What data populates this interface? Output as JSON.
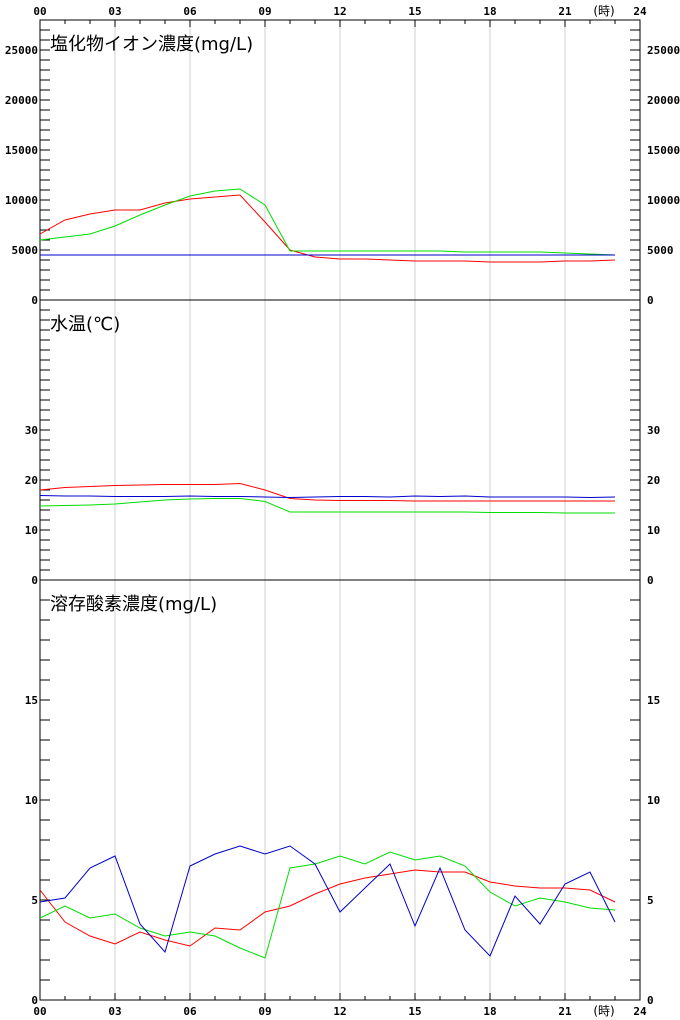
{
  "hours_unit_label": "(時)",
  "x_tick_labels": [
    "00",
    "03",
    "06",
    "09",
    "12",
    "15",
    "18",
    "21",
    "24"
  ],
  "series_colors": {
    "red": "#ff0000",
    "green": "#00dd00",
    "blue": "#0000cc"
  },
  "chart_data": [
    {
      "type": "line",
      "title": "塩化物イオン濃度(mg/L)",
      "xlabel": "(時)",
      "ylabel": "",
      "xlim": [
        0,
        24
      ],
      "ylim": [
        0,
        28000
      ],
      "grid": "vertical",
      "y_tick_labels": [
        "0",
        "5000",
        "10000",
        "15000",
        "20000",
        "25000"
      ],
      "x": [
        0,
        1,
        2,
        3,
        4,
        5,
        6,
        7,
        8,
        9,
        10,
        11,
        12,
        13,
        14,
        15,
        16,
        17,
        18,
        19,
        20,
        21,
        22,
        23
      ],
      "series": [
        {
          "color": "red",
          "values": [
            6600,
            8000,
            8600,
            9000,
            9000,
            9700,
            10100,
            10300,
            10500,
            7800,
            5000,
            4300,
            4100,
            4100,
            4000,
            3900,
            3900,
            3900,
            3800,
            3800,
            3800,
            3900,
            3900,
            4000
          ]
        },
        {
          "color": "green",
          "values": [
            6000,
            6300,
            6600,
            7400,
            8500,
            9500,
            10400,
            10900,
            11100,
            9500,
            4900,
            4900,
            4900,
            4900,
            4900,
            4900,
            4900,
            4800,
            4800,
            4800,
            4800,
            4700,
            4600,
            4500
          ]
        },
        {
          "color": "blue",
          "values": [
            4500,
            4500,
            4500,
            4500,
            4500,
            4500,
            4500,
            4500,
            4500,
            4500,
            4500,
            4500,
            4500,
            4500,
            4500,
            4500,
            4500,
            4500,
            4500,
            4500,
            4500,
            4500,
            4500,
            4500
          ]
        }
      ]
    },
    {
      "type": "line",
      "title": "水温(℃)",
      "xlabel": "(時)",
      "ylabel": "",
      "xlim": [
        0,
        24
      ],
      "ylim": [
        0,
        56
      ],
      "grid": "vertical",
      "y_tick_labels": [
        "0",
        "10",
        "20",
        "30"
      ],
      "x": [
        0,
        1,
        2,
        3,
        4,
        5,
        6,
        7,
        8,
        9,
        10,
        11,
        12,
        13,
        14,
        15,
        16,
        17,
        18,
        19,
        20,
        21,
        22,
        23
      ],
      "series": [
        {
          "color": "red",
          "values": [
            18.0,
            18.5,
            18.7,
            18.9,
            19.0,
            19.1,
            19.1,
            19.1,
            19.3,
            18.0,
            16.3,
            16.0,
            15.9,
            15.9,
            15.9,
            15.8,
            15.8,
            15.8,
            15.8,
            15.8,
            15.8,
            15.8,
            15.8,
            15.8
          ]
        },
        {
          "color": "green",
          "values": [
            14.8,
            14.9,
            15.0,
            15.2,
            15.6,
            16.0,
            16.2,
            16.3,
            16.3,
            15.7,
            13.6,
            13.6,
            13.6,
            13.6,
            13.6,
            13.6,
            13.6,
            13.6,
            13.5,
            13.5,
            13.5,
            13.4,
            13.4,
            13.4
          ]
        },
        {
          "color": "blue",
          "values": [
            16.9,
            16.8,
            16.8,
            16.7,
            16.7,
            16.7,
            16.8,
            16.7,
            16.7,
            16.6,
            16.5,
            16.6,
            16.7,
            16.7,
            16.6,
            16.8,
            16.7,
            16.8,
            16.6,
            16.6,
            16.6,
            16.6,
            16.5,
            16.6
          ]
        }
      ]
    },
    {
      "type": "line",
      "title": "溶存酸素濃度(mg/L)",
      "xlabel": "(時)",
      "ylabel": "",
      "xlim": [
        0,
        24
      ],
      "ylim": [
        0,
        21
      ],
      "grid": "vertical",
      "y_tick_labels": [
        "0",
        "5",
        "10",
        "15"
      ],
      "x": [
        0,
        1,
        2,
        3,
        4,
        5,
        6,
        7,
        8,
        9,
        10,
        11,
        12,
        13,
        14,
        15,
        16,
        17,
        18,
        19,
        20,
        21,
        22,
        23
      ],
      "series": [
        {
          "color": "red",
          "values": [
            5.5,
            3.9,
            3.2,
            2.8,
            3.4,
            3.0,
            2.7,
            3.6,
            3.5,
            4.4,
            4.7,
            5.3,
            5.8,
            6.1,
            6.3,
            6.5,
            6.4,
            6.4,
            5.9,
            5.7,
            5.6,
            5.6,
            5.5,
            4.9
          ]
        },
        {
          "color": "green",
          "values": [
            4.1,
            4.7,
            4.1,
            4.3,
            3.6,
            3.2,
            3.4,
            3.2,
            2.6,
            2.1,
            6.6,
            6.8,
            7.2,
            6.8,
            7.4,
            7.0,
            7.2,
            6.7,
            5.4,
            4.7,
            5.1,
            4.9,
            4.6,
            4.5
          ]
        },
        {
          "color": "blue",
          "values": [
            4.9,
            5.1,
            6.6,
            7.2,
            3.8,
            2.4,
            6.7,
            7.3,
            7.7,
            7.3,
            7.7,
            6.8,
            4.4,
            5.6,
            6.8,
            3.7,
            6.6,
            3.5,
            2.2,
            5.2,
            3.8,
            5.8,
            6.4,
            3.9
          ]
        }
      ]
    }
  ]
}
